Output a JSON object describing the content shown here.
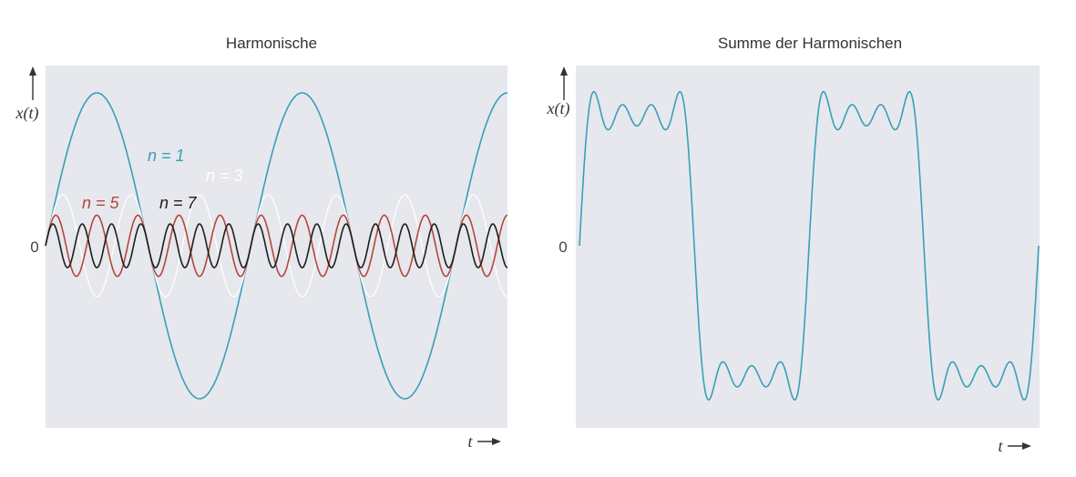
{
  "chart_data": [
    {
      "type": "line",
      "title": "Harmonische",
      "ylabel": "x(t)",
      "xlabel": "t",
      "zero_label": "0",
      "grid": false,
      "x_periods": 2.25,
      "ylim": [
        -1.2,
        1.2
      ],
      "series": [
        {
          "name": "n = 1",
          "harmonic": 1,
          "amplitude": 1.0,
          "color": "#3a9fb6"
        },
        {
          "name": "n = 3",
          "harmonic": 3,
          "amplitude": 0.333,
          "color": "#ffffff"
        },
        {
          "name": "n = 5",
          "harmonic": 5,
          "amplitude": 0.2,
          "color": "#b5473a"
        },
        {
          "name": "n = 7",
          "harmonic": 7,
          "amplitude": 0.143,
          "color": "#1e1e1e"
        }
      ]
    },
    {
      "type": "line",
      "title": "Summe der Harmonischen",
      "ylabel": "x(t)",
      "xlabel": "t",
      "zero_label": "0",
      "grid": false,
      "x_periods": 2.0,
      "ylim": [
        -1.2,
        1.2
      ],
      "series": [
        {
          "name": "",
          "harmonics": [
            1,
            3,
            5,
            7
          ],
          "color": "#3a9fb6"
        }
      ]
    }
  ],
  "colors": {
    "plot_bg": "#e6e8ee",
    "text": "#333333"
  }
}
